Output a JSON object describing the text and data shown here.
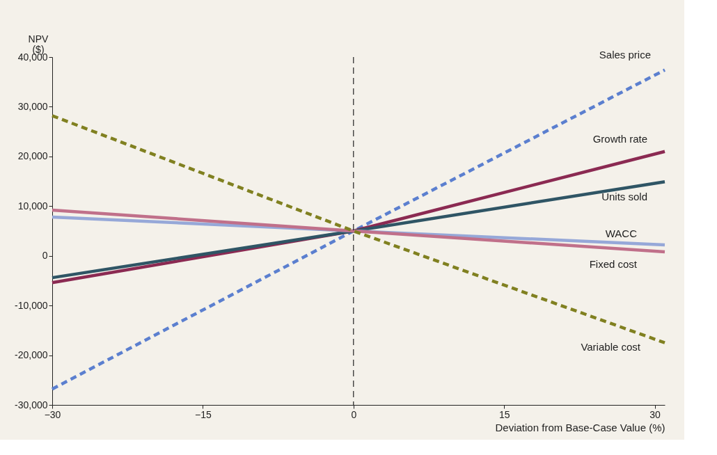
{
  "chart_data": {
    "type": "line",
    "ylabel": "NPV\n($)",
    "xlabel": "Deviation from Base-Case Value (%)",
    "x": [
      -30,
      0,
      31
    ],
    "xlim": [
      -30,
      31
    ],
    "xticks": [
      -30,
      -15,
      0,
      15,
      30
    ],
    "ylim": [
      -30000,
      40000
    ],
    "yticks": [
      {
        "value": -30000,
        "label": "-30,000"
      },
      {
        "value": -20000,
        "label": "-20,000"
      },
      {
        "value": -10000,
        "label": "-10,000"
      },
      0,
      {
        "value": 10000,
        "label": "10,000"
      },
      {
        "value": 20000,
        "label": "20,000"
      },
      {
        "value": 30000,
        "label": "30,000"
      },
      {
        "value": 40000,
        "label": "40,000"
      }
    ],
    "grid": false,
    "ref_lines": [
      {
        "axis": "x",
        "value": 0,
        "line_style": "dashed",
        "color": "#222222"
      }
    ],
    "series": [
      {
        "name": "Sales price",
        "color": "#5b7fcf",
        "line_style": "dashed",
        "values": [
          -26800,
          5000,
          37400
        ]
      },
      {
        "name": "Growth rate",
        "color": "#8b2a52",
        "line_style": "solid",
        "values": [
          -5400,
          5000,
          21000
        ]
      },
      {
        "name": "Units sold",
        "color": "#2f5565",
        "line_style": "solid",
        "values": [
          -4400,
          5000,
          14900
        ]
      },
      {
        "name": "WACC",
        "color": "#96a8d8",
        "line_style": "solid",
        "values": [
          7800,
          5000,
          2200
        ]
      },
      {
        "name": "Fixed cost",
        "color": "#c0708a",
        "line_style": "solid",
        "values": [
          9200,
          5000,
          800
        ]
      },
      {
        "name": "Variable cost",
        "color": "#808020",
        "line_style": "dashed",
        "values": [
          28200,
          5000,
          -17500
        ]
      }
    ]
  }
}
